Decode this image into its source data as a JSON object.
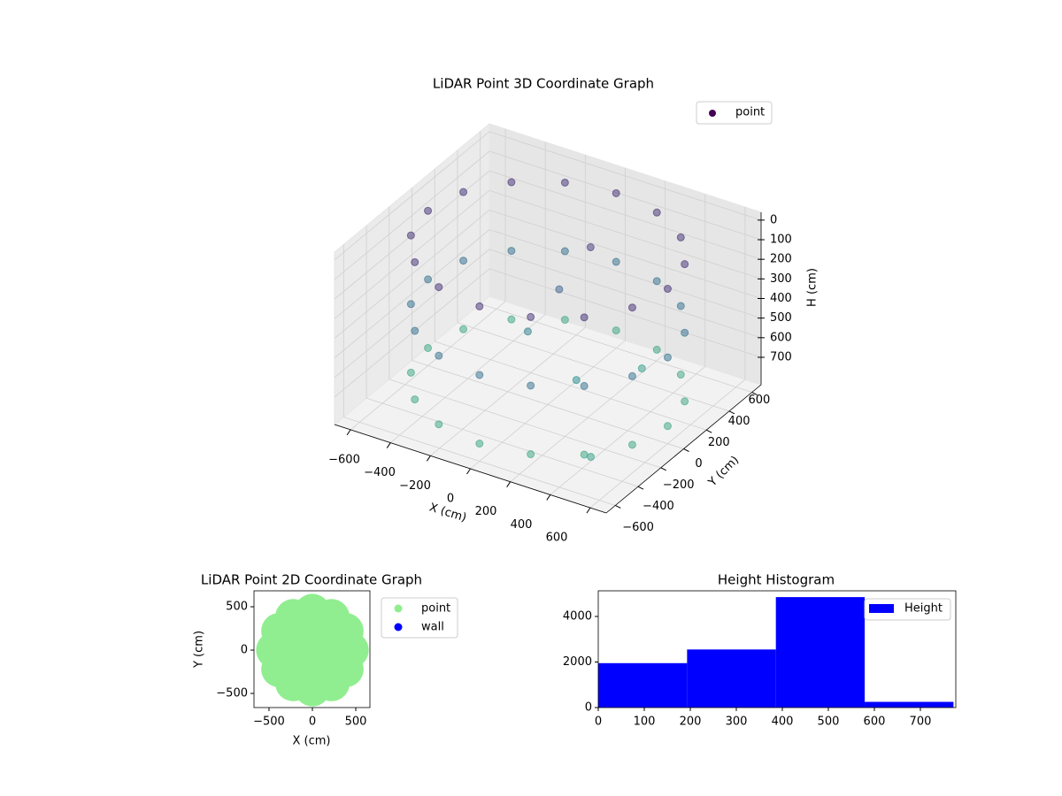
{
  "chart_data": [
    {
      "type": "scatter3d",
      "title": "LiDAR Point 3D Coordinate Graph",
      "xlabel": "X (cm)",
      "ylabel": "Y (cm)",
      "zlabel": "H (cm)",
      "xlim": [
        -680,
        680
      ],
      "ylim": [
        -680,
        680
      ],
      "zlim": [
        840,
        -40
      ],
      "xticks": [
        {
          "value": -600,
          "label": "−600"
        },
        {
          "value": -400,
          "label": "−400"
        },
        {
          "value": -200,
          "label": "−200"
        },
        0,
        200,
        400,
        600
      ],
      "yticks": [
        {
          "value": -600,
          "label": "−600"
        },
        {
          "value": -400,
          "label": "−400"
        },
        {
          "value": -200,
          "label": "−200"
        },
        0,
        200,
        400,
        600
      ],
      "zticks": [
        0,
        100,
        200,
        300,
        400,
        500,
        600,
        700
      ],
      "colormap": "viridis",
      "legend": "upper right",
      "grid": true,
      "series": [
        {
          "name": "point",
          "color": "#440154",
          "x": [
            600,
            554,
            424,
            230,
            0,
            -230,
            -424,
            -554,
            -600,
            -554,
            -424,
            -230,
            0,
            230,
            424,
            554,
            600,
            554,
            424,
            230,
            0,
            -230,
            -424,
            -554,
            -600,
            -554,
            -424,
            -230,
            0,
            230,
            424,
            554,
            600,
            554,
            424,
            230,
            0,
            -230,
            -424,
            -554,
            -600,
            -554,
            -424,
            -230,
            0,
            230,
            424,
            554,
            100,
            0,
            -100,
            200,
            300,
            500
          ],
          "y": [
            0,
            230,
            424,
            554,
            600,
            554,
            424,
            230,
            0,
            -230,
            -424,
            -554,
            -600,
            -554,
            -424,
            -230,
            0,
            230,
            424,
            554,
            600,
            554,
            424,
            230,
            0,
            -230,
            -424,
            -554,
            -600,
            -554,
            -424,
            -230,
            0,
            230,
            424,
            554,
            600,
            554,
            424,
            230,
            0,
            -230,
            -424,
            -554,
            -600,
            -554,
            -424,
            -230,
            200,
            100,
            0,
            -100,
            300,
            -500
          ],
          "h": [
            50,
            50,
            50,
            50,
            50,
            50,
            50,
            50,
            50,
            50,
            50,
            50,
            50,
            50,
            50,
            50,
            400,
            400,
            400,
            400,
            400,
            400,
            400,
            400,
            400,
            400,
            400,
            400,
            400,
            400,
            400,
            400,
            750,
            750,
            750,
            750,
            750,
            750,
            750,
            750,
            750,
            750,
            750,
            750,
            750,
            750,
            750,
            750,
            100,
            300,
            500,
            600,
            700,
            700
          ]
        }
      ]
    },
    {
      "type": "scatter",
      "title": "LiDAR Point 2D Coordinate Graph",
      "xlabel": "X (cm)",
      "ylabel": "Y (cm)",
      "xlim": [
        -673,
        663
      ],
      "ylim": [
        -663,
        684
      ],
      "xticks": [
        {
          "value": -500,
          "label": "−500"
        },
        0,
        500
      ],
      "yticks": [
        {
          "value": -500,
          "label": "−500"
        },
        0,
        500
      ],
      "legend": "outside right",
      "series": [
        {
          "name": "point",
          "color": "#90ee90",
          "x": [
            0,
            220,
            156,
            0,
            -156,
            -220,
            -156,
            0,
            156,
            440,
            381,
            220,
            0,
            -220,
            -381,
            -440,
            -381,
            -220,
            0,
            220,
            381
          ],
          "y": [
            0,
            0,
            156,
            220,
            156,
            0,
            -156,
            -220,
            -156,
            0,
            220,
            381,
            440,
            381,
            220,
            0,
            -220,
            -381,
            -440,
            -381,
            -220
          ]
        },
        {
          "name": "wall",
          "color": "#0000ff",
          "x": [],
          "y": []
        }
      ]
    },
    {
      "type": "histogram",
      "title": "Height Histogram",
      "bins": [
        0,
        193,
        386,
        579,
        772
      ],
      "counts": [
        1950,
        2550,
        4850,
        250
      ],
      "series_name": "Height",
      "color": "#0000ff",
      "xlim": [
        0,
        777
      ],
      "ylim": [
        0,
        5126
      ],
      "xticks": [
        0,
        100,
        200,
        300,
        400,
        500,
        600,
        700
      ],
      "yticks": [
        0,
        2000,
        4000
      ],
      "legend": "upper right"
    }
  ]
}
